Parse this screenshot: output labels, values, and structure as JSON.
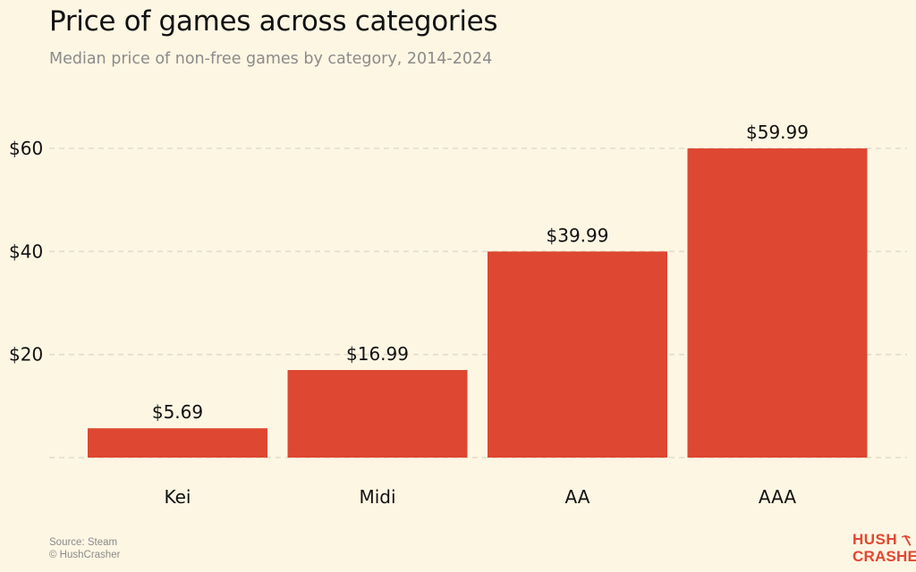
{
  "chart_data": {
    "type": "bar",
    "title": "Price of games across categories",
    "subtitle": "Median price of non-free games by category, 2014-2024",
    "categories": [
      "Kei",
      "Midi",
      "AA",
      "AAA"
    ],
    "values": [
      5.69,
      16.99,
      39.99,
      59.99
    ],
    "value_labels": [
      "$5.69",
      "$16.99",
      "$39.99",
      "$59.99"
    ],
    "y_ticks": [
      20,
      40,
      60
    ],
    "y_tick_labels": [
      "$20",
      "$40",
      "$60"
    ],
    "ylim": [
      0,
      60
    ],
    "grid": "horizontal dashed",
    "xlabel": "",
    "ylabel": "",
    "bar_color": "#de4731",
    "background_color": "#fdf6e3"
  },
  "footer": {
    "source": "Source: Steam",
    "copyright": "© HushCrasher"
  },
  "logo": {
    "line1": "HUSH",
    "line2": "CRASHER",
    "icon": "pickaxe-icon",
    "color": "#e2472f"
  }
}
